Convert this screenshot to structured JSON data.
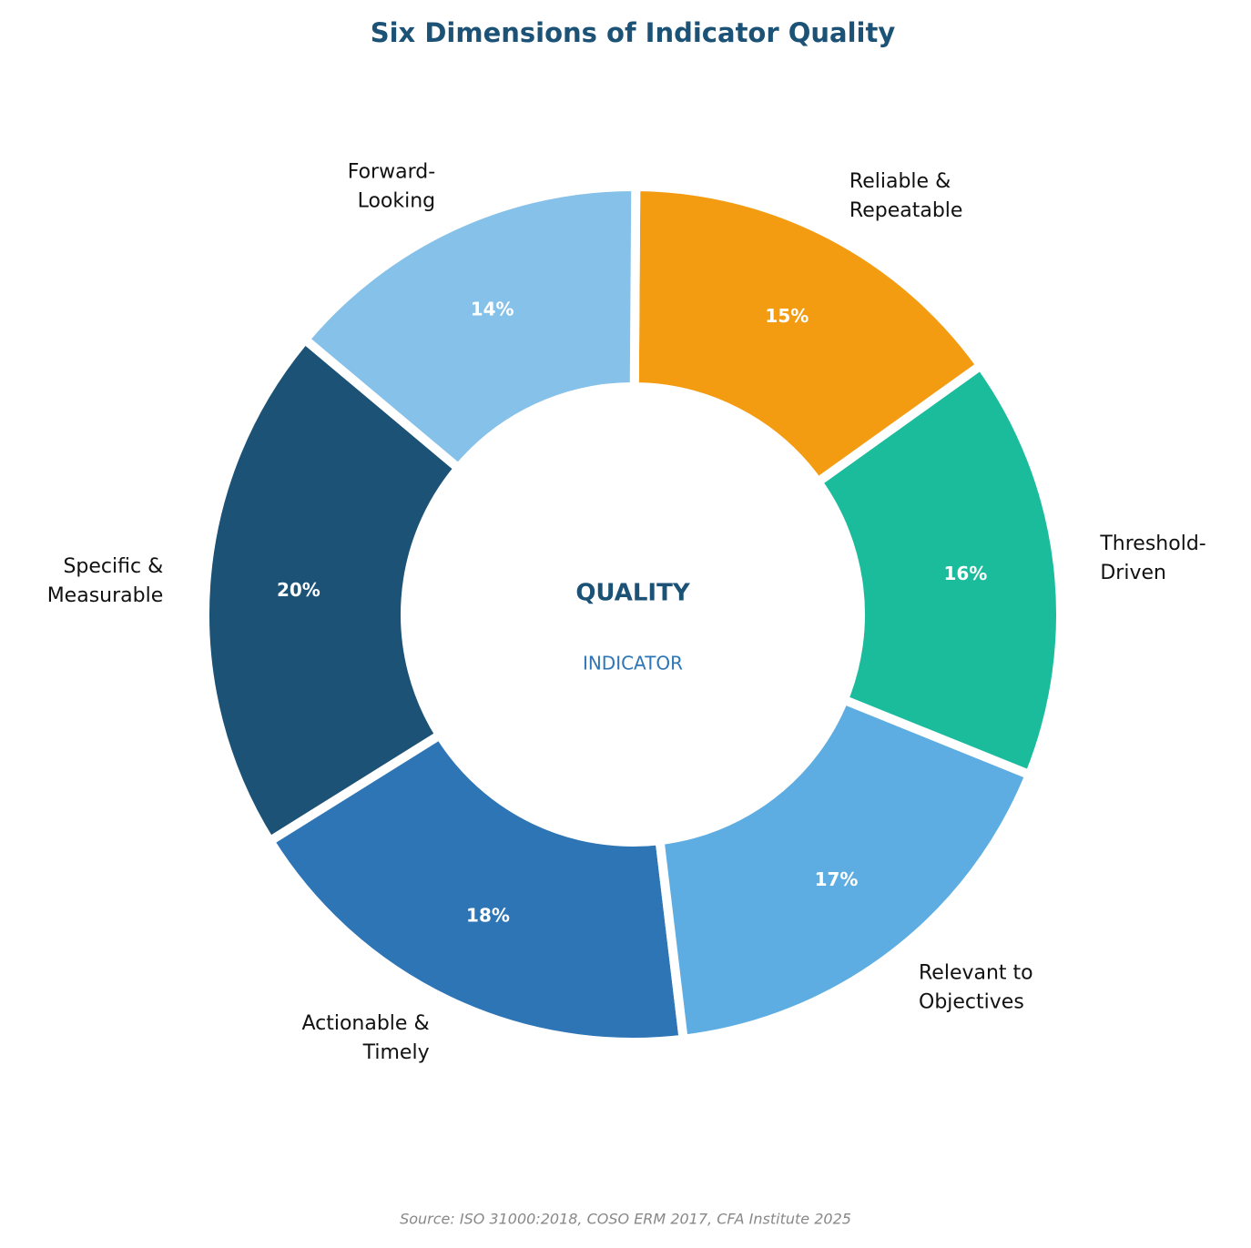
{
  "chart_data": {
    "type": "donut",
    "title": "Six Dimensions of Indicator Quality",
    "center_title": "QUALITY",
    "center_subtitle": "INDICATOR",
    "source": "Source: ISO 31000:2018, COSO ERM 2017, CFA Institute 2025",
    "categories": [
      "Specific &\nMeasurable",
      "Actionable &\nTimely",
      "Relevant to\nObjectives",
      "Threshold-\nDriven",
      "Reliable &\nRepeatable",
      "Forward-\nLooking"
    ],
    "values": [
      20,
      18,
      17,
      16,
      15,
      14
    ],
    "value_labels": [
      "20%",
      "18%",
      "17%",
      "16%",
      "15%",
      "14%"
    ],
    "colors": [
      "#1b5276",
      "#2e75b6",
      "#5dade2",
      "#1abc9c",
      "#f39c12",
      "#85c1e9"
    ]
  }
}
